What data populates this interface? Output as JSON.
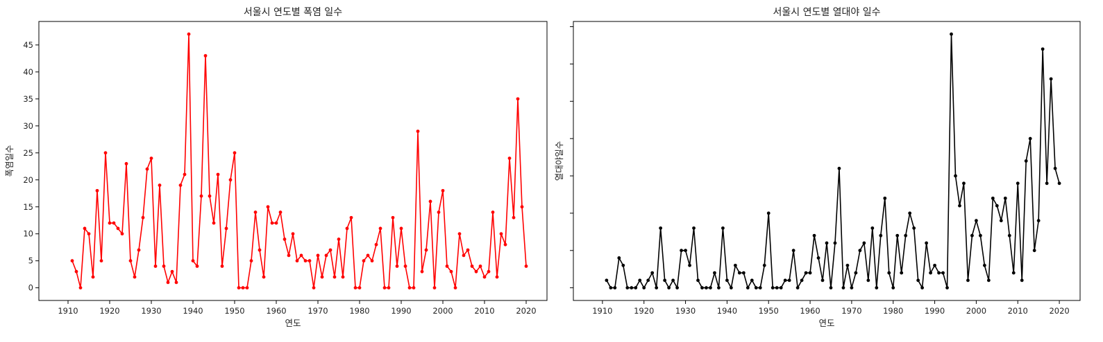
{
  "chart_data": [
    {
      "type": "line",
      "title": "서울시 연도별 폭염 일수",
      "xlabel": "연도",
      "ylabel": "폭염일수",
      "color": "#ff0000",
      "marker": "circle",
      "xlim": [
        1903,
        2025
      ],
      "ylim": [
        -2.35,
        49.35
      ],
      "xticks": [
        1910,
        1920,
        1930,
        1940,
        1950,
        1960,
        1970,
        1980,
        1990,
        2000,
        2010,
        2020
      ],
      "yticks": [
        0,
        5,
        10,
        15,
        20,
        25,
        30,
        35,
        40,
        45
      ],
      "x": [
        1911,
        1912,
        1913,
        1914,
        1915,
        1916,
        1917,
        1918,
        1919,
        1920,
        1921,
        1922,
        1923,
        1924,
        1925,
        1926,
        1927,
        1928,
        1929,
        1930,
        1931,
        1932,
        1933,
        1934,
        1935,
        1936,
        1937,
        1938,
        1939,
        1940,
        1941,
        1942,
        1943,
        1944,
        1945,
        1946,
        1947,
        1948,
        1949,
        1950,
        1951,
        1952,
        1953,
        1954,
        1955,
        1956,
        1957,
        1958,
        1959,
        1960,
        1961,
        1962,
        1963,
        1964,
        1965,
        1966,
        1967,
        1968,
        1969,
        1970,
        1971,
        1972,
        1973,
        1974,
        1975,
        1976,
        1977,
        1978,
        1979,
        1980,
        1981,
        1982,
        1983,
        1984,
        1985,
        1986,
        1987,
        1988,
        1989,
        1990,
        1991,
        1992,
        1993,
        1994,
        1995,
        1996,
        1997,
        1998,
        1999,
        2000,
        2001,
        2002,
        2003,
        2004,
        2005,
        2006,
        2007,
        2008,
        2009,
        2010,
        2011,
        2012,
        2013,
        2014,
        2015,
        2016,
        2017,
        2018,
        2019,
        2020
      ],
      "y": [
        5,
        3,
        0,
        11,
        10,
        2,
        18,
        5,
        25,
        12,
        12,
        11,
        10,
        23,
        5,
        2,
        7,
        13,
        22,
        24,
        4,
        19,
        4,
        1,
        3,
        1,
        19,
        21,
        47,
        5,
        4,
        17,
        43,
        17,
        12,
        21,
        4,
        11,
        20,
        25,
        0,
        0,
        0,
        5,
        14,
        7,
        2,
        15,
        12,
        12,
        14,
        9,
        6,
        10,
        5,
        6,
        5,
        5,
        0,
        6,
        2,
        6,
        7,
        2,
        9,
        2,
        11,
        13,
        0,
        0,
        5,
        6,
        5,
        8,
        11,
        0,
        0,
        13,
        4,
        11,
        4,
        0,
        0,
        29,
        3,
        7,
        16,
        0,
        14,
        18,
        4,
        3,
        0,
        10,
        6,
        7,
        4,
        3,
        4,
        2,
        3,
        14,
        2,
        10,
        8,
        24,
        13,
        35,
        15,
        4
      ]
    },
    {
      "type": "line",
      "title": "서울시 연도별 열대야 일수",
      "xlabel": "연도",
      "ylabel": "열대야일수",
      "color": "#000000",
      "marker": "circle",
      "xlim": [
        1903,
        2025
      ],
      "ylim": [
        -1.7,
        35.7
      ],
      "xticks": [
        1910,
        1920,
        1930,
        1940,
        1950,
        1960,
        1970,
        1980,
        1990,
        2000,
        2010,
        2020
      ],
      "yticks": [],
      "x": [
        1911,
        1912,
        1913,
        1914,
        1915,
        1916,
        1917,
        1918,
        1919,
        1920,
        1921,
        1922,
        1923,
        1924,
        1925,
        1926,
        1927,
        1928,
        1929,
        1930,
        1931,
        1932,
        1933,
        1934,
        1935,
        1936,
        1937,
        1938,
        1939,
        1940,
        1941,
        1942,
        1943,
        1944,
        1945,
        1946,
        1947,
        1948,
        1949,
        1950,
        1951,
        1952,
        1953,
        1954,
        1955,
        1956,
        1957,
        1958,
        1959,
        1960,
        1961,
        1962,
        1963,
        1964,
        1965,
        1966,
        1967,
        1968,
        1969,
        1970,
        1971,
        1972,
        1973,
        1974,
        1975,
        1976,
        1977,
        1978,
        1979,
        1980,
        1981,
        1982,
        1983,
        1984,
        1985,
        1986,
        1987,
        1988,
        1989,
        1990,
        1991,
        1992,
        1993,
        1994,
        1995,
        1996,
        1997,
        1998,
        1999,
        2000,
        2001,
        2002,
        2003,
        2004,
        2005,
        2006,
        2007,
        2008,
        2009,
        2010,
        2011,
        2012,
        2013,
        2014,
        2015,
        2016,
        2017,
        2018,
        2019,
        2020
      ],
      "y": [
        1,
        0,
        0,
        4,
        3,
        0,
        0,
        0,
        1,
        0,
        1,
        2,
        0,
        8,
        1,
        0,
        1,
        0,
        5,
        5,
        3,
        8,
        1,
        0,
        0,
        0,
        2,
        0,
        8,
        1,
        0,
        3,
        2,
        2,
        0,
        1,
        0,
        0,
        3,
        10,
        0,
        0,
        0,
        1,
        1,
        5,
        0,
        1,
        2,
        2,
        7,
        4,
        1,
        6,
        0,
        6,
        16,
        0,
        3,
        0,
        2,
        5,
        6,
        1,
        8,
        0,
        7,
        12,
        2,
        0,
        7,
        2,
        7,
        10,
        8,
        1,
        0,
        6,
        2,
        3,
        2,
        2,
        0,
        34,
        15,
        11,
        14,
        1,
        7,
        9,
        7,
        3,
        1,
        12,
        11,
        9,
        12,
        7,
        2,
        14,
        1,
        17,
        20,
        5,
        9,
        32,
        14,
        28,
        16,
        14
      ]
    }
  ]
}
